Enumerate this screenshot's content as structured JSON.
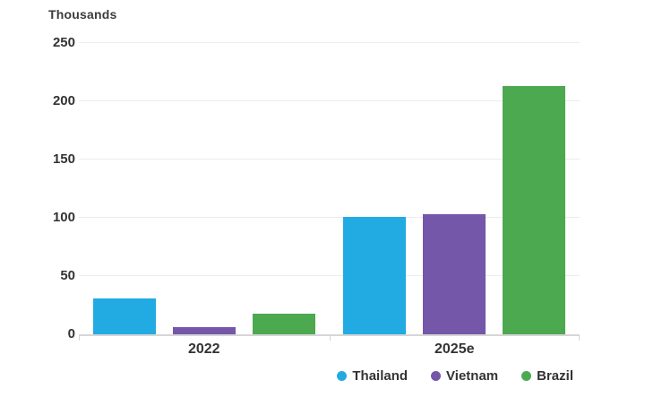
{
  "chart_data": {
    "type": "bar",
    "unit_label": "Thousands",
    "categories": [
      "2022",
      "2025e"
    ],
    "series": [
      {
        "name": "Thailand",
        "color": "#21ABE2",
        "values": [
          31,
          101
        ]
      },
      {
        "name": "Vietnam",
        "color": "#7457A8",
        "values": [
          6,
          103
        ]
      },
      {
        "name": "Brazil",
        "color": "#4CA94F",
        "values": [
          18,
          213
        ]
      }
    ],
    "ylim": [
      0,
      250
    ],
    "yticks": [
      0,
      50,
      100,
      150,
      200,
      250
    ],
    "grid": true,
    "legend_position": "bottom-right",
    "colors": {
      "gridline": "#ececec",
      "axis_line": "#d6d6d6",
      "text": "#333333"
    }
  }
}
